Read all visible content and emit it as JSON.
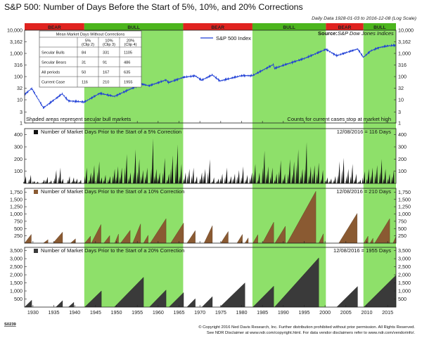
{
  "header": {
    "title": "S&P 500: Number of Days Before the Start of 5%, 10%, and 20% Corrections",
    "subtitle": "Daily Data 1928-01-03 to 2016-12-08 (Log Scale)"
  },
  "footer": {
    "code": "S0239",
    "line1": "© Copyright 2016 Ned Davis Research, Inc. Further distribution prohibited without prior permission. All Rights Reserved.",
    "line2": "See NDR Disclaimer at www.ndr.com/copyright.html. For data vendor disclaimers refer to www.ndr.com/vendorinfo/."
  },
  "colors": {
    "bull": "#8ee06a",
    "bear": "#e0231f",
    "bull_banner": "#4cb51d",
    "sp_line": "#1f3fd6",
    "bars5": "#111111",
    "area10": "#8a5a32",
    "area20": "#3a3a3a"
  },
  "chart_data": [
    {
      "type": "line",
      "panel": "top",
      "scale": "log",
      "ylim": [
        1,
        10000
      ],
      "yticks": [
        10000,
        3162,
        1000,
        316,
        100,
        32,
        10,
        3,
        1
      ],
      "ytick_labels": [
        "10,000",
        "3,162",
        "1,000",
        "316",
        "100",
        "32",
        "10",
        "3",
        "1"
      ],
      "xlim": [
        1928,
        2017
      ],
      "series": [
        {
          "name": "S&P 500 Index",
          "x": [
            1928,
            1929.7,
            1932.5,
            1937,
            1938.5,
            1942.3,
            1946,
            1949.5,
            1956,
            1957.8,
            1961.9,
            1962.5,
            1966,
            1968.9,
            1970.4,
            1973,
            1974.8,
            1980,
            1982.6,
            1987.6,
            1987.9,
            1990.5,
            1995,
            2000.2,
            2002.8,
            2007.8,
            2009.2,
            2011,
            2013,
            2015,
            2016.9
          ],
          "values": [
            17,
            31,
            4.5,
            18,
            9,
            8,
            19,
            14,
            48,
            40,
            72,
            55,
            93,
            108,
            70,
            118,
            65,
            110,
            110,
            330,
            225,
            330,
            600,
            1500,
            800,
            1560,
            680,
            1300,
            1800,
            2100,
            2250
          ]
        }
      ],
      "regions": [
        {
          "label": "BEAR",
          "start": 1928,
          "end": 1942.3
        },
        {
          "label": "BULL",
          "start": 1942.3,
          "end": 1966
        },
        {
          "label": "BEAR",
          "start": 1966,
          "end": 1982.6
        },
        {
          "label": "BULL",
          "start": 1982.6,
          "end": 2000.2
        },
        {
          "label": "BEAR",
          "start": 2000.2,
          "end": 2009.2
        },
        {
          "label": "BULL",
          "start": 2009.2,
          "end": 2017
        }
      ],
      "source": "Source:",
      "source_name": "S&P Dow Jones Indices",
      "annotation_left": "Shaded areas represent secular bull markets",
      "annotation_right": "Counts for current cases stop at market high",
      "table": {
        "title": "Mean Market Days Without Corrections",
        "headers": [
          [
            "5%",
            "(Clip 2)"
          ],
          [
            "10%",
            "(Clip 3)"
          ],
          [
            "20%",
            "(Clip 4)"
          ]
        ],
        "rows": [
          {
            "label": "Secular Bulls",
            "values": [
              "84",
              "331",
              "1105"
            ]
          },
          {
            "label": "Secular Bears",
            "values": [
              "31",
              "91",
              "486"
            ]
          },
          {
            "label": "All periods",
            "values": [
              "50",
              "167",
              "635"
            ]
          },
          {
            "label": "Current Case",
            "values": [
              "116",
              "210",
              "1955"
            ]
          }
        ]
      }
    },
    {
      "type": "bar",
      "panel": "5%",
      "title": "Number of Market Days Prior to the Start of a 5% Correction",
      "current": "12/08/2016 = 116 Days",
      "ylim": [
        0,
        450
      ],
      "yticks": [
        100,
        200,
        300,
        400
      ],
      "ytick_labels": [
        "100",
        "200",
        "300",
        "400"
      ],
      "spikes": [
        [
          1928.3,
          60
        ],
        [
          1929.5,
          70
        ],
        [
          1930.4,
          20
        ],
        [
          1931.2,
          15
        ],
        [
          1932.7,
          30
        ],
        [
          1933.5,
          55
        ],
        [
          1934.4,
          25
        ],
        [
          1935.6,
          110
        ],
        [
          1936.6,
          130
        ],
        [
          1937.2,
          40
        ],
        [
          1938.8,
          60
        ],
        [
          1939.8,
          50
        ],
        [
          1940.6,
          40
        ],
        [
          1941.5,
          30
        ],
        [
          1942.9,
          130
        ],
        [
          1943.9,
          90
        ],
        [
          1944.7,
          150
        ],
        [
          1945.9,
          180
        ],
        [
          1946.5,
          50
        ],
        [
          1947.4,
          70
        ],
        [
          1948.5,
          60
        ],
        [
          1949.6,
          120
        ],
        [
          1950.4,
          140
        ],
        [
          1951.3,
          130
        ],
        [
          1952.5,
          240
        ],
        [
          1953.4,
          90
        ],
        [
          1954.6,
          280
        ],
        [
          1955.5,
          200
        ],
        [
          1956.4,
          110
        ],
        [
          1957.4,
          130
        ],
        [
          1958.8,
          370
        ],
        [
          1959.6,
          120
        ],
        [
          1960.4,
          90
        ],
        [
          1961.6,
          210
        ],
        [
          1962.6,
          80
        ],
        [
          1963.5,
          230
        ],
        [
          1964.7,
          320
        ],
        [
          1965.6,
          160
        ],
        [
          1966.6,
          90
        ],
        [
          1967.5,
          120
        ],
        [
          1968.5,
          130
        ],
        [
          1969.3,
          60
        ],
        [
          1970.5,
          90
        ],
        [
          1971.3,
          120
        ],
        [
          1972.4,
          200
        ],
        [
          1973.4,
          50
        ],
        [
          1974.5,
          40
        ],
        [
          1975.4,
          80
        ],
        [
          1976.5,
          130
        ],
        [
          1977.5,
          60
        ],
        [
          1978.4,
          80
        ],
        [
          1979.4,
          110
        ],
        [
          1980.4,
          140
        ],
        [
          1981.4,
          70
        ],
        [
          1982.5,
          90
        ],
        [
          1983.3,
          160
        ],
        [
          1984.3,
          90
        ],
        [
          1985.5,
          270
        ],
        [
          1986.4,
          140
        ],
        [
          1987.4,
          130
        ],
        [
          1988.4,
          80
        ],
        [
          1989.4,
          190
        ],
        [
          1990.4,
          80
        ],
        [
          1991.6,
          200
        ],
        [
          1992.6,
          180
        ],
        [
          1993.6,
          280
        ],
        [
          1994.6,
          120
        ],
        [
          1995.6,
          340
        ],
        [
          1996.6,
          140
        ],
        [
          1997.5,
          150
        ],
        [
          1998.5,
          170
        ],
        [
          1999.5,
          110
        ],
        [
          2000.6,
          50
        ],
        [
          2001.5,
          40
        ],
        [
          2002.5,
          60
        ],
        [
          2003.5,
          180
        ],
        [
          2004.5,
          210
        ],
        [
          2005.6,
          120
        ],
        [
          2006.6,
          160
        ],
        [
          2007.5,
          80
        ],
        [
          2008.5,
          30
        ],
        [
          2009.5,
          100
        ],
        [
          2010.5,
          120
        ],
        [
          2011.4,
          130
        ],
        [
          2012.5,
          150
        ],
        [
          2013.6,
          200
        ],
        [
          2014.5,
          120
        ],
        [
          2015.5,
          80
        ],
        [
          2016.5,
          110
        ]
      ]
    },
    {
      "type": "area",
      "panel": "10%",
      "title": "Number of Market Days Prior to the Start of a 10% Correction",
      "current": "12/08/2016 = 210 Days",
      "ylim": [
        0,
        1880
      ],
      "yticks": [
        250,
        500,
        750,
        1000,
        1250,
        1500,
        1750
      ],
      "ytick_labels": [
        "250",
        "500",
        "750",
        "1,000",
        "1,250",
        "1,500",
        "1,750"
      ],
      "ramps": [
        [
          1928.0,
          1929.6,
          300
        ],
        [
          1932.5,
          1933.6,
          120
        ],
        [
          1934.8,
          1937.1,
          380
        ],
        [
          1939.0,
          1940.2,
          150
        ],
        [
          1942.4,
          1943.8,
          240
        ],
        [
          1944.0,
          1946.3,
          640
        ],
        [
          1947.0,
          1948.4,
          260
        ],
        [
          1949.6,
          1950.5,
          310
        ],
        [
          1951.0,
          1953.3,
          440
        ],
        [
          1953.9,
          1955.8,
          660
        ],
        [
          1956.5,
          1957.6,
          270
        ],
        [
          1958.1,
          1961.9,
          840
        ],
        [
          1963.0,
          1966.1,
          690
        ],
        [
          1966.9,
          1968.9,
          430
        ],
        [
          1971.0,
          1973.0,
          600
        ],
        [
          1975.0,
          1976.8,
          400
        ],
        [
          1978.9,
          1980.2,
          300
        ],
        [
          1980.8,
          1981.6,
          180
        ],
        [
          1982.7,
          1983.9,
          290
        ],
        [
          1985.0,
          1987.7,
          720
        ],
        [
          1988.0,
          1990.5,
          580
        ],
        [
          1990.9,
          1997.8,
          1780
        ],
        [
          1998.5,
          1999.6,
          320
        ],
        [
          2003.3,
          2007.7,
          1020
        ],
        [
          2009.3,
          2010.3,
          240
        ],
        [
          2010.8,
          2011.5,
          170
        ],
        [
          2011.9,
          2015.5,
          840
        ],
        [
          2016.3,
          2016.94,
          210
        ]
      ]
    },
    {
      "type": "area",
      "panel": "20%",
      "title": "Number of Market Days Prior to the Start of a 20% Correction",
      "current": "12/08/2016 = 1955 Days",
      "ylim": [
        0,
        3700
      ],
      "yticks": [
        500,
        1000,
        1500,
        2000,
        2500,
        3000,
        3500
      ],
      "ytick_labels": [
        "500",
        "1,000",
        "1,500",
        "2,000",
        "2,500",
        "3,000",
        "3,500"
      ],
      "ramps": [
        [
          1928.0,
          1929.7,
          430
        ],
        [
          1935.5,
          1937.1,
          400
        ],
        [
          1938.5,
          1939.8,
          300
        ],
        [
          1942.4,
          1946.4,
          1000
        ],
        [
          1949.5,
          1956.5,
          1850
        ],
        [
          1957.9,
          1961.9,
          1060
        ],
        [
          1962.6,
          1966.1,
          900
        ],
        [
          1966.9,
          1968.9,
          520
        ],
        [
          1970.5,
          1973.0,
          650
        ],
        [
          1974.8,
          1980.8,
          1500
        ],
        [
          1982.7,
          1987.7,
          1300
        ],
        [
          1987.9,
          1998.5,
          3050
        ],
        [
          2002.8,
          2007.8,
          1280
        ],
        [
          2009.3,
          2016.94,
          1955
        ]
      ]
    }
  ],
  "x_axis": {
    "years": [
      "1930",
      "1935",
      "1940",
      "1945",
      "1950",
      "1955",
      "1960",
      "1965",
      "1970",
      "1975",
      "1980",
      "1985",
      "1990",
      "1995",
      "2000",
      "2005",
      "2010",
      "2015"
    ]
  }
}
